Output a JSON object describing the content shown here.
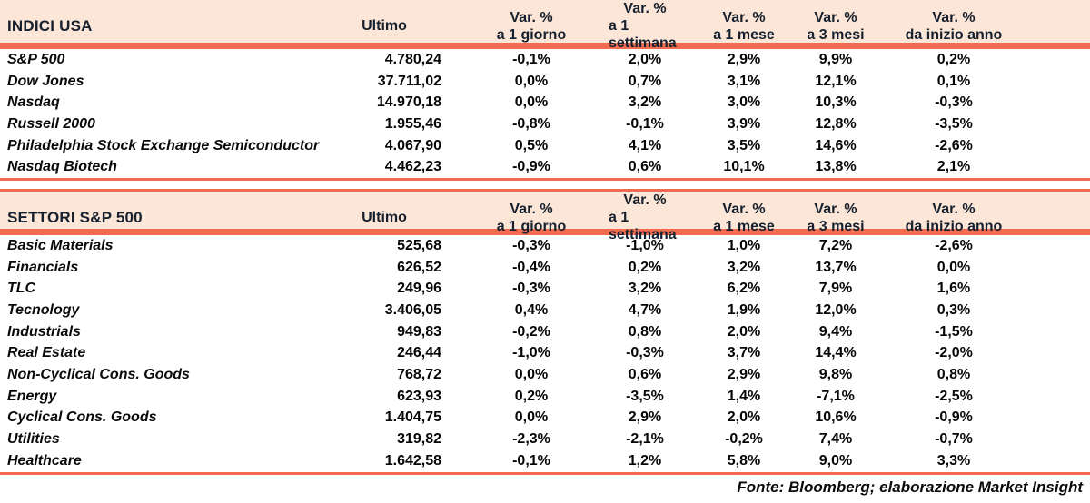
{
  "colors": {
    "header_bg": "#FBE6D7",
    "rule_line": "#F26B50",
    "header_text": "#16202E",
    "body_text": "#060606"
  },
  "columns": {
    "ultimo": "Ultimo",
    "var_label": "Var. %",
    "sub": [
      "a 1 giorno",
      "a 1 settimana",
      "a 1 mese",
      "a 3 mesi",
      "da inizio anno"
    ]
  },
  "tables": [
    {
      "title": "INDICI USA",
      "rows": [
        {
          "label": "S&P 500",
          "ultimo": "4.780,24",
          "vars": [
            "-0,1%",
            "2,0%",
            "2,9%",
            "9,9%",
            "0,2%"
          ]
        },
        {
          "label": "Dow Jones",
          "ultimo": "37.711,02",
          "vars": [
            "0,0%",
            "0,7%",
            "3,1%",
            "12,1%",
            "0,1%"
          ]
        },
        {
          "label": "Nasdaq",
          "ultimo": "14.970,18",
          "vars": [
            "0,0%",
            "3,2%",
            "3,0%",
            "10,3%",
            "-0,3%"
          ]
        },
        {
          "label": "Russell 2000",
          "ultimo": "1.955,46",
          "vars": [
            "-0,8%",
            "-0,1%",
            "3,9%",
            "12,8%",
            "-3,5%"
          ]
        },
        {
          "label": "Philadelphia Stock Exchange Semiconductor",
          "ultimo": "4.067,90",
          "vars": [
            "0,5%",
            "4,1%",
            "3,5%",
            "14,6%",
            "-2,6%"
          ]
        },
        {
          "label": "Nasdaq Biotech",
          "ultimo": "4.462,23",
          "vars": [
            "-0,9%",
            "0,6%",
            "10,1%",
            "13,8%",
            "2,1%"
          ]
        }
      ]
    },
    {
      "title": "SETTORI S&P 500",
      "rows": [
        {
          "label": "Basic Materials",
          "ultimo": "525,68",
          "vars": [
            "-0,3%",
            "-1,0%",
            "1,0%",
            "7,2%",
            "-2,6%"
          ]
        },
        {
          "label": "Financials",
          "ultimo": "626,52",
          "vars": [
            "-0,4%",
            "0,2%",
            "3,2%",
            "13,7%",
            "0,0%"
          ]
        },
        {
          "label": "TLC",
          "ultimo": "249,96",
          "vars": [
            "-0,3%",
            "3,2%",
            "6,2%",
            "7,9%",
            "1,6%"
          ]
        },
        {
          "label": "Tecnology",
          "ultimo": "3.406,05",
          "vars": [
            "0,4%",
            "4,7%",
            "1,9%",
            "12,0%",
            "0,3%"
          ]
        },
        {
          "label": "Industrials",
          "ultimo": "949,83",
          "vars": [
            "-0,2%",
            "0,8%",
            "2,0%",
            "9,4%",
            "-1,5%"
          ]
        },
        {
          "label": "Real Estate",
          "ultimo": "246,44",
          "vars": [
            "-1,0%",
            "-0,3%",
            "3,7%",
            "14,4%",
            "-2,0%"
          ]
        },
        {
          "label": "Non-Cyclical Cons. Goods",
          "ultimo": "768,72",
          "vars": [
            "0,0%",
            "0,6%",
            "2,9%",
            "9,8%",
            "0,8%"
          ]
        },
        {
          "label": "Energy",
          "ultimo": "623,93",
          "vars": [
            "0,2%",
            "-3,5%",
            "1,4%",
            "-7,1%",
            "-2,5%"
          ]
        },
        {
          "label": "Cyclical Cons. Goods",
          "ultimo": "1.404,75",
          "vars": [
            "0,0%",
            "2,9%",
            "2,0%",
            "10,6%",
            "-0,9%"
          ]
        },
        {
          "label": "Utilities",
          "ultimo": "319,82",
          "vars": [
            "-2,3%",
            "-2,1%",
            "-0,2%",
            "7,4%",
            "-0,7%"
          ]
        },
        {
          "label": "Healthcare",
          "ultimo": "1.642,58",
          "vars": [
            "-0,1%",
            "1,2%",
            "5,8%",
            "9,0%",
            "3,3%"
          ]
        }
      ]
    }
  ],
  "footer": "Fonte: Bloomberg; elaborazione Market Insight"
}
